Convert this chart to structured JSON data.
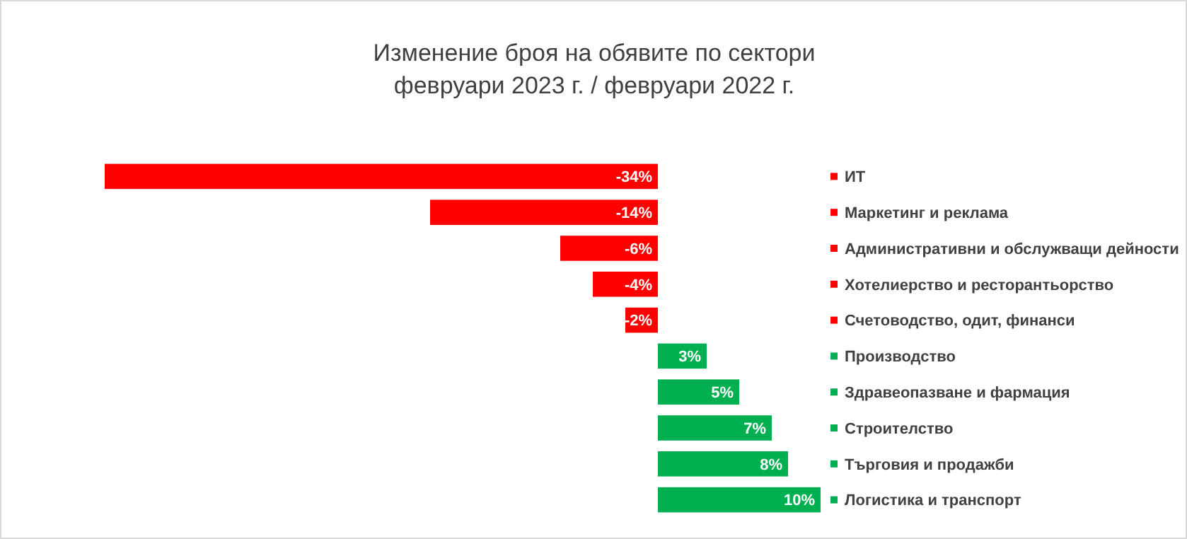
{
  "chart_data": {
    "type": "bar",
    "orientation": "horizontal",
    "title": "Изменение броя на обявите по сектори",
    "subtitle": "февруари 2023 г. / февруари 2022 г.",
    "categories": [
      "ИТ",
      "Маркетинг и реклама",
      "Административни и обслужващи дейности",
      "Хотелиерство и ресторантьорство",
      "Счетоводство, одит, финанси",
      "Производство",
      "Здравеопазване и фармация",
      "Строителство",
      "Търговия и продажби",
      "Логистика и транспорт"
    ],
    "values": [
      -34,
      -14,
      -6,
      -4,
      -2,
      3,
      5,
      7,
      8,
      10
    ],
    "colors": [
      "#ff0000",
      "#ff0000",
      "#ff0000",
      "#ff0000",
      "#ff0000",
      "#00b050",
      "#00b050",
      "#00b050",
      "#00b050",
      "#00b050"
    ],
    "value_labels": [
      "-34%",
      "-14%",
      "-6%",
      "-4%",
      "-2%",
      "3%",
      "5%",
      "7%",
      "8%",
      "10%"
    ],
    "data_labels": false
  }
}
